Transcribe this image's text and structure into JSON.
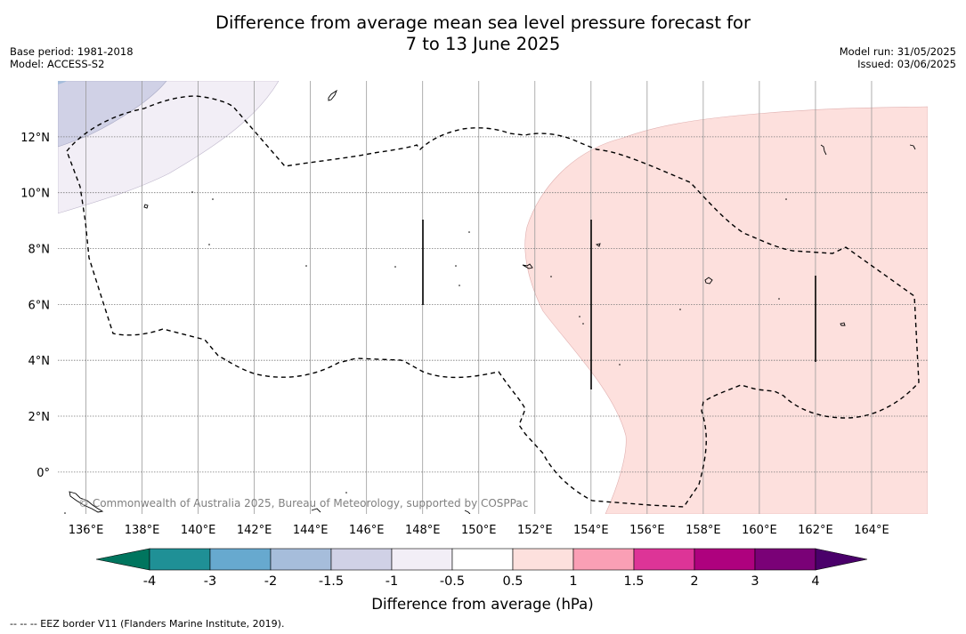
{
  "header": {
    "title_line1": "Difference from average mean sea level pressure forecast for",
    "title_line2": "7 to 13 June 2025",
    "base_period": "Base period: 1981-2018",
    "model": "Model: ACCESS-S2",
    "model_run": "Model run: 31/05/2025",
    "issued": "Issued: 03/06/2025"
  },
  "map": {
    "lon_range": [
      135,
      166
    ],
    "lat_range": [
      -1.5,
      14
    ],
    "lon_ticks": [
      136,
      138,
      140,
      142,
      144,
      146,
      148,
      150,
      152,
      154,
      156,
      158,
      160,
      162,
      164
    ],
    "lon_labels": [
      "136°E",
      "138°E",
      "140°E",
      "142°E",
      "144°E",
      "146°E",
      "148°E",
      "150°E",
      "152°E",
      "154°E",
      "156°E",
      "158°E",
      "160°E",
      "162°E",
      "164°E"
    ],
    "lat_ticks": [
      0,
      2,
      4,
      6,
      8,
      10,
      12
    ],
    "lat_labels": [
      "0°",
      "2°N",
      "4°N",
      "6°N",
      "8°N",
      "10°N",
      "12°N"
    ],
    "copyright": "© Commonwealth of Australia 2025, Bureau of Meteorology, supported by COSPPac",
    "colors": {
      "band_neg_0_5_to_neg_1": "#f2eef6",
      "band_neg_1_to_neg_1_5": "#d0d1e6",
      "band_0_5_to_1": "#fde0dd",
      "eez_border": "#000000"
    }
  },
  "colorbar": {
    "title": "Difference from average (hPa)",
    "tick_labels": [
      "-4",
      "-3",
      "-2",
      "-1.5",
      "-1",
      "-0.5",
      "0.5",
      "1",
      "1.5",
      "2",
      "3",
      "4"
    ],
    "under_color": "#00755e",
    "over_color": "#4a006a",
    "colors": [
      "#1f9096",
      "#67a9cf",
      "#a6bddb",
      "#d0d1e6",
      "#f2eef6",
      "#ffffff",
      "#fde0dd",
      "#fa9fb5",
      "#dd3497",
      "#ae017e",
      "#7a0177"
    ]
  },
  "footnote": "--  --  -- EEZ border V11 (Flanders Marine Institute, 2019)."
}
